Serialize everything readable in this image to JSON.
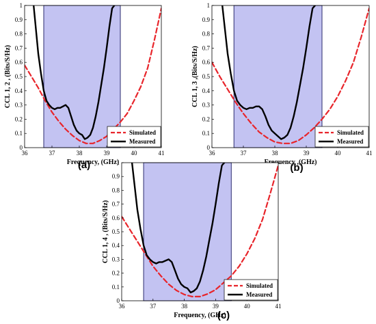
{
  "colors": {
    "simulated": "#e8252b",
    "measured": "#000000",
    "band_fill": "#b9b9f0",
    "band_stroke": "#2b2b6e"
  },
  "chart_data": [
    {
      "id": "a",
      "type": "line",
      "panel_label": "(a)",
      "title": "",
      "xlabel": "Frequency, (GHz)",
      "ylabel": "CCL 1, 2 , (Bits/S/Hz)",
      "xlim": [
        36,
        41
      ],
      "ylim": [
        0,
        1
      ],
      "xticks": [
        "36",
        "37",
        "38",
        "39",
        "40",
        "41"
      ],
      "yticks": [
        "0",
        "0.1",
        "0.2",
        "0.3",
        "0.4",
        "0.5",
        "0.6",
        "0.7",
        "0.8",
        "0.9",
        "1"
      ],
      "grid": false,
      "legend": "bottom-right",
      "shaded_band": [
        36.7,
        39.5
      ],
      "series": [
        {
          "name": "Simulated",
          "style": "dashed",
          "x": [
            36,
            36.25,
            36.5,
            36.75,
            37,
            37.25,
            37.5,
            37.75,
            38,
            38.25,
            38.5,
            38.75,
            39,
            39.25,
            39.5,
            39.75,
            40,
            40.25,
            40.5,
            40.75,
            41
          ],
          "y": [
            0.58,
            0.5,
            0.42,
            0.33,
            0.25,
            0.185,
            0.13,
            0.085,
            0.05,
            0.03,
            0.03,
            0.05,
            0.08,
            0.13,
            0.18,
            0.24,
            0.33,
            0.43,
            0.56,
            0.76,
            0.98
          ]
        },
        {
          "name": "Measured",
          "style": "solid",
          "x": [
            36.33,
            36.4,
            36.5,
            36.6,
            36.7,
            36.8,
            36.9,
            37.0,
            37.1,
            37.2,
            37.3,
            37.4,
            37.5,
            37.6,
            37.7,
            37.8,
            37.9,
            38.0,
            38.1,
            38.2,
            38.3,
            38.4,
            38.5,
            38.6,
            38.7,
            38.8,
            38.9,
            39.0,
            39.1,
            39.2,
            39.28
          ],
          "y": [
            1.0,
            0.86,
            0.66,
            0.52,
            0.4,
            0.33,
            0.3,
            0.28,
            0.27,
            0.28,
            0.28,
            0.29,
            0.3,
            0.28,
            0.22,
            0.16,
            0.12,
            0.1,
            0.09,
            0.06,
            0.07,
            0.09,
            0.14,
            0.22,
            0.32,
            0.44,
            0.56,
            0.7,
            0.85,
            0.98,
            1.0
          ]
        }
      ]
    },
    {
      "id": "b",
      "type": "line",
      "panel_label": "(b)",
      "title": "",
      "xlabel": "Frequency ,(GHz)",
      "ylabel": "CCL 1, 3 ,(Bits/S/Hz)",
      "xlim": [
        36,
        41
      ],
      "ylim": [
        0,
        1
      ],
      "xticks": [
        "36",
        "37",
        "38",
        "39",
        "40",
        "41"
      ],
      "yticks": [
        "0",
        "0.1",
        "0.2",
        "0.3",
        "0.4",
        "0.5",
        "0.6",
        "0.7",
        "0.8",
        "0.9",
        "1"
      ],
      "grid": false,
      "legend": "bottom-right",
      "shaded_band": [
        36.7,
        39.5
      ],
      "series": [
        {
          "name": "Simulated",
          "style": "dashed",
          "x": [
            36,
            36.25,
            36.5,
            36.75,
            37,
            37.25,
            37.5,
            37.75,
            38,
            38.25,
            38.5,
            38.75,
            39,
            39.25,
            39.5,
            39.75,
            40,
            40.25,
            40.5,
            40.75,
            41
          ],
          "y": [
            0.6,
            0.5,
            0.41,
            0.32,
            0.24,
            0.17,
            0.11,
            0.07,
            0.04,
            0.03,
            0.03,
            0.05,
            0.09,
            0.14,
            0.2,
            0.27,
            0.36,
            0.47,
            0.6,
            0.78,
            0.98
          ]
        },
        {
          "name": "Measured",
          "style": "solid",
          "x": [
            36.33,
            36.4,
            36.5,
            36.6,
            36.7,
            36.8,
            36.9,
            37.0,
            37.1,
            37.2,
            37.3,
            37.4,
            37.5,
            37.6,
            37.7,
            37.8,
            37.9,
            38.0,
            38.1,
            38.2,
            38.3,
            38.4,
            38.5,
            38.6,
            38.7,
            38.8,
            38.9,
            39.0,
            39.1,
            39.2,
            39.28
          ],
          "y": [
            1.0,
            0.86,
            0.66,
            0.52,
            0.4,
            0.33,
            0.3,
            0.28,
            0.27,
            0.28,
            0.28,
            0.29,
            0.29,
            0.27,
            0.22,
            0.16,
            0.12,
            0.1,
            0.08,
            0.06,
            0.07,
            0.09,
            0.14,
            0.22,
            0.32,
            0.44,
            0.56,
            0.7,
            0.85,
            0.98,
            1.0
          ]
        }
      ]
    },
    {
      "id": "c",
      "type": "line",
      "panel_label": "(c)",
      "title": "",
      "xlabel": "Frequency, (GHz)",
      "ylabel": "CCL 1, 4 , (Bits/S/Hz)",
      "xlim": [
        36,
        41
      ],
      "ylim": [
        0,
        1
      ],
      "xticks": [
        "36",
        "37",
        "38",
        "39",
        "40",
        "41"
      ],
      "yticks": [
        "0",
        "0.1",
        "0.2",
        "0.3",
        "0.4",
        "0.5",
        "0.6",
        "0.7",
        "0.8",
        "0.9",
        "1"
      ],
      "grid": false,
      "legend": "bottom-right",
      "shaded_band": [
        36.7,
        39.5
      ],
      "series": [
        {
          "name": "Simulated",
          "style": "dashed",
          "x": [
            36,
            36.25,
            36.5,
            36.75,
            37,
            37.25,
            37.5,
            37.75,
            38,
            38.25,
            38.5,
            38.75,
            39,
            39.25,
            39.5,
            39.75,
            40,
            40.25,
            40.5,
            40.75,
            41
          ],
          "y": [
            0.61,
            0.52,
            0.43,
            0.34,
            0.25,
            0.18,
            0.12,
            0.075,
            0.045,
            0.03,
            0.03,
            0.05,
            0.08,
            0.13,
            0.18,
            0.25,
            0.34,
            0.45,
            0.59,
            0.78,
            0.98
          ]
        },
        {
          "name": "Measured",
          "style": "solid",
          "x": [
            36.33,
            36.4,
            36.5,
            36.6,
            36.7,
            36.8,
            36.9,
            37.0,
            37.1,
            37.2,
            37.3,
            37.4,
            37.5,
            37.6,
            37.7,
            37.8,
            37.9,
            38.0,
            38.1,
            38.2,
            38.3,
            38.4,
            38.5,
            38.6,
            38.7,
            38.8,
            38.9,
            39.0,
            39.1,
            39.2,
            39.28
          ],
          "y": [
            1.0,
            0.86,
            0.66,
            0.52,
            0.4,
            0.33,
            0.3,
            0.28,
            0.27,
            0.28,
            0.28,
            0.29,
            0.3,
            0.28,
            0.22,
            0.16,
            0.12,
            0.1,
            0.09,
            0.06,
            0.07,
            0.09,
            0.14,
            0.22,
            0.32,
            0.44,
            0.56,
            0.7,
            0.85,
            0.98,
            1.0
          ]
        }
      ]
    }
  ]
}
